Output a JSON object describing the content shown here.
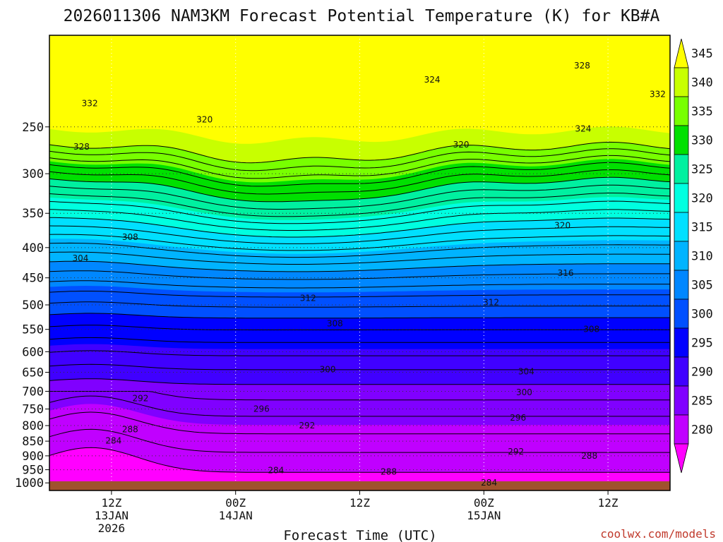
{
  "chart_data": {
    "type": "contour",
    "title": "2026011306 NAM3KM Forecast Potential Temperature (K) for KB#A",
    "xlabel": "Forecast Time (UTC)",
    "ylabel": "",
    "y_axis": {
      "unit": "hPa",
      "range": [
        175,
        1030
      ],
      "ticks": [
        "250",
        "300",
        "350",
        "400",
        "450",
        "500",
        "550",
        "600",
        "650",
        "700",
        "750",
        "800",
        "850",
        "900",
        "950",
        "1000"
      ]
    },
    "x_axis": {
      "range_hours": [
        0,
        60
      ],
      "ticks": [
        {
          "hour": 6,
          "line1": "12Z",
          "line2": "13JAN",
          "line3": "2026"
        },
        {
          "hour": 18,
          "line1": "00Z",
          "line2": "14JAN",
          "line3": ""
        },
        {
          "hour": 30,
          "line1": "12Z",
          "line2": "",
          "line3": ""
        },
        {
          "hour": 42,
          "line1": "00Z",
          "line2": "15JAN",
          "line3": ""
        },
        {
          "hour": 54,
          "line1": "12Z",
          "line2": "",
          "line3": ""
        }
      ]
    },
    "colorbar": {
      "ticks": [
        "345",
        "340",
        "335",
        "330",
        "325",
        "320",
        "315",
        "310",
        "305",
        "300",
        "295",
        "290",
        "285",
        "280"
      ],
      "colors": [
        "#ffff00",
        "#c8ff00",
        "#78ff00",
        "#00e000",
        "#00f0a0",
        "#00ffe0",
        "#00e0ff",
        "#00b4ff",
        "#0087ff",
        "#0050ff",
        "#0000ff",
        "#4000ff",
        "#8000ff",
        "#c000ff",
        "#ff00ff"
      ]
    },
    "contour_labels": [
      {
        "hour": 3.9,
        "p": 228,
        "text": "332"
      },
      {
        "hour": 3.1,
        "p": 270,
        "text": "328"
      },
      {
        "hour": 15.0,
        "p": 243,
        "text": "320"
      },
      {
        "hour": 37.0,
        "p": 208,
        "text": "324"
      },
      {
        "hour": 39.8,
        "p": 268,
        "text": "320"
      },
      {
        "hour": 51.5,
        "p": 197,
        "text": "328"
      },
      {
        "hour": 58.8,
        "p": 220,
        "text": "332"
      },
      {
        "hour": 51.6,
        "p": 252,
        "text": "324"
      },
      {
        "hour": 49.6,
        "p": 367,
        "text": "320"
      },
      {
        "hour": 7.8,
        "p": 384,
        "text": "308"
      },
      {
        "hour": 3.0,
        "p": 417,
        "text": "304"
      },
      {
        "hour": 49.9,
        "p": 442,
        "text": "316"
      },
      {
        "hour": 25.0,
        "p": 487,
        "text": "312"
      },
      {
        "hour": 42.7,
        "p": 495,
        "text": "312"
      },
      {
        "hour": 27.6,
        "p": 538,
        "text": "308"
      },
      {
        "hour": 52.4,
        "p": 550,
        "text": "308"
      },
      {
        "hour": 26.9,
        "p": 643,
        "text": "300"
      },
      {
        "hour": 46.1,
        "p": 648,
        "text": "304"
      },
      {
        "hour": 8.8,
        "p": 720,
        "text": "292"
      },
      {
        "hour": 20.5,
        "p": 750,
        "text": "296"
      },
      {
        "hour": 45.9,
        "p": 703,
        "text": "300"
      },
      {
        "hour": 45.3,
        "p": 776,
        "text": "296"
      },
      {
        "hour": 24.9,
        "p": 800,
        "text": "292"
      },
      {
        "hour": 7.8,
        "p": 812,
        "text": "288"
      },
      {
        "hour": 6.2,
        "p": 849,
        "text": "284"
      },
      {
        "hour": 45.1,
        "p": 885,
        "text": "292"
      },
      {
        "hour": 52.2,
        "p": 900,
        "text": "288"
      },
      {
        "hour": 21.9,
        "p": 952,
        "text": "284"
      },
      {
        "hour": 32.8,
        "p": 957,
        "text": "288"
      },
      {
        "hour": 42.5,
        "p": 1000,
        "text": "284"
      }
    ]
  },
  "credit": "coolwx.com/models"
}
